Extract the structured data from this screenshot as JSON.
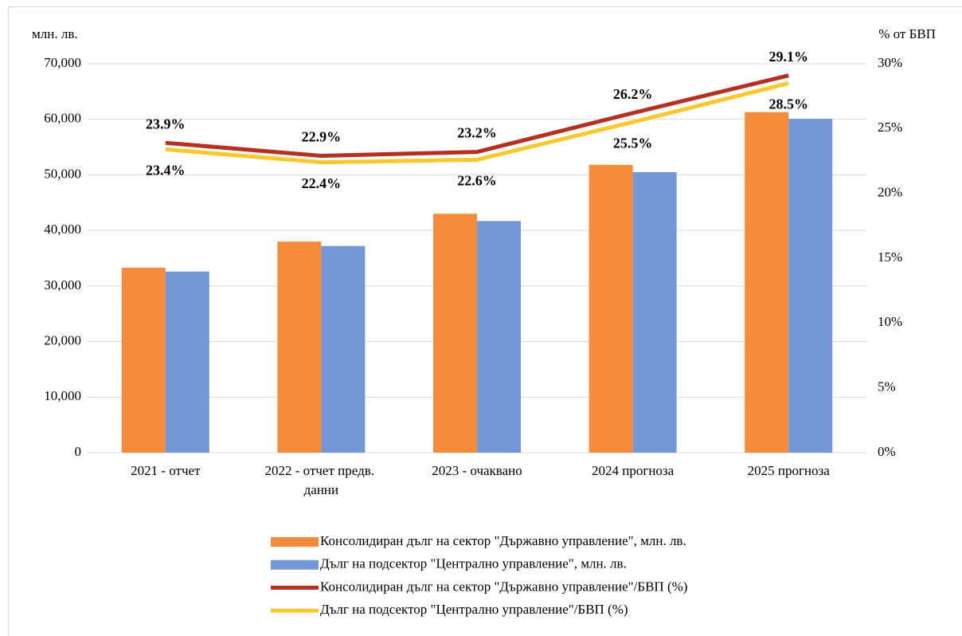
{
  "chart_data": {
    "type": "bar_line",
    "y_label": "млн. лв.",
    "y2_label": "% от БВП",
    "categories": [
      "2021 - отчет",
      "2022 - отчет предв. данни",
      "2023 - очаквано",
      "2024 прогноза",
      "2025 прогноза"
    ],
    "series": [
      {
        "name": "Консолидиран дълг на сектор \"Държавно управление\", млн. лв.",
        "type": "bar",
        "color": "#f68c3b",
        "values": [
          33300,
          38000,
          43000,
          51800,
          61300
        ]
      },
      {
        "name": "Дълг на подсектор \"Централно управление\", млн. лв.",
        "type": "bar",
        "color": "#7597d5",
        "values": [
          32600,
          37200,
          41700,
          50500,
          60100
        ]
      },
      {
        "name": "Консолидиран дълг на сектор \"Държавно управление\"/БВП (%)",
        "type": "line",
        "axis": "y2",
        "color": "#b5301f",
        "values": [
          23.9,
          22.9,
          23.2,
          26.2,
          29.1
        ],
        "value_labels": [
          "23.9%",
          "22.9%",
          "23.2%",
          "26.2%",
          "29.1%"
        ]
      },
      {
        "name": "Дълг на подсектор \"Централно управление\"/БВП (%)",
        "type": "line",
        "axis": "y2",
        "color": "#f7c830",
        "values": [
          23.4,
          22.4,
          22.6,
          25.5,
          28.5
        ],
        "value_labels": [
          "23.4%",
          "22.4%",
          "22.6%",
          "25.5%",
          "28.5%"
        ]
      }
    ],
    "ylim": [
      0,
      70000
    ],
    "yticks": [
      0,
      {
        "value": 10000,
        "label": "10,000"
      },
      {
        "value": 20000,
        "label": "20,000"
      },
      {
        "value": 30000,
        "label": "30,000"
      },
      {
        "value": 40000,
        "label": "40,000"
      },
      {
        "value": 50000,
        "label": "50,000"
      },
      {
        "value": 60000,
        "label": "60,000"
      },
      {
        "value": 70000,
        "label": "70,000"
      }
    ],
    "y2lim": [
      0,
      30
    ],
    "y2ticks": [
      {
        "value": 0,
        "label": "0%"
      },
      {
        "value": 5,
        "label": "5%"
      },
      {
        "value": 10,
        "label": "10%"
      },
      {
        "value": 15,
        "label": "15%"
      },
      {
        "value": 20,
        "label": "20%"
      },
      {
        "value": 25,
        "label": "25%"
      },
      {
        "value": 30,
        "label": "30%"
      }
    ],
    "grid": true,
    "legend": "bottom"
  }
}
